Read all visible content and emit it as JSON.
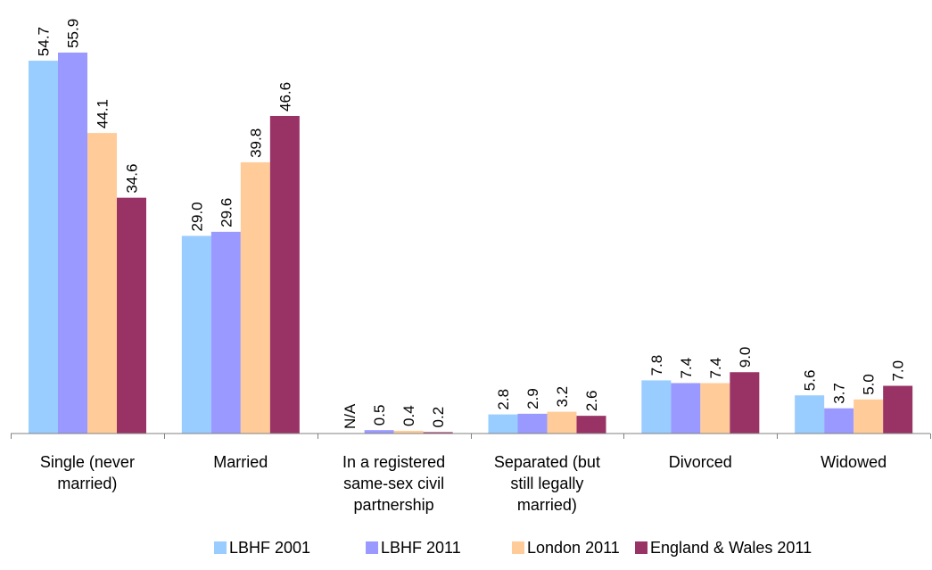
{
  "chart_data": {
    "type": "bar",
    "title": "",
    "xlabel": "",
    "ylabel": "",
    "ylim": [
      0,
      58
    ],
    "grid": false,
    "legend_position": "bottom",
    "categories": [
      [
        "Single (never",
        "married)"
      ],
      [
        "Married"
      ],
      [
        "In a registered",
        "same-sex civil",
        "partnership"
      ],
      [
        "Separated (but",
        "still legally",
        "married)"
      ],
      [
        "Divorced"
      ],
      [
        "Widowed"
      ]
    ],
    "series": [
      {
        "name": "LBHF 2001",
        "color": "#99ccff",
        "values": [
          54.7,
          29.0,
          null,
          2.8,
          7.8,
          5.6
        ],
        "labels": [
          "54.7",
          "29.0",
          "N/A",
          "2.8",
          "7.8",
          "5.6"
        ]
      },
      {
        "name": "LBHF 2011",
        "color": "#9999ff",
        "values": [
          55.9,
          29.6,
          0.5,
          2.9,
          7.4,
          3.7
        ],
        "labels": [
          "55.9",
          "29.6",
          "0.5",
          "2.9",
          "7.4",
          "3.7"
        ]
      },
      {
        "name": "London 2011",
        "color": "#ffcc99",
        "values": [
          44.1,
          39.8,
          0.4,
          3.2,
          7.4,
          5.0
        ],
        "labels": [
          "44.1",
          "39.8",
          "0.4",
          "3.2",
          "7.4",
          "5.0"
        ]
      },
      {
        "name": "England & Wales 2011",
        "color": "#993366",
        "values": [
          34.6,
          46.6,
          0.2,
          2.6,
          9.0,
          7.0
        ],
        "labels": [
          "34.6",
          "46.6",
          "0.2",
          "2.6",
          "9.0",
          "7.0"
        ]
      }
    ]
  }
}
